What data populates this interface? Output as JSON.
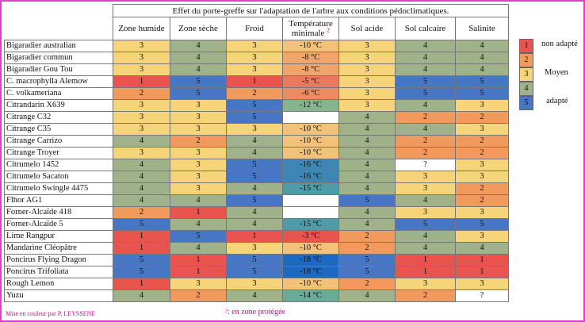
{
  "title": "Effet du porte-greffe sur l'adaptation de l'arbre aux conditions pédoclimatiques.",
  "columns": [
    "Zone humide",
    "Zone sèche",
    "Froid",
    "Température minimale",
    "Sol acide",
    "Sol calcaire",
    "Salinite"
  ],
  "temp_superscript": "2",
  "rows": [
    {
      "name": "Bigaradier australian",
      "values": [
        "3",
        "4",
        "3",
        "-10 °C",
        "3",
        "4",
        "4"
      ]
    },
    {
      "name": "Bigaradier commun",
      "values": [
        "3",
        "4",
        "3",
        "-8 °C",
        "3",
        "4",
        "4"
      ]
    },
    {
      "name": "Bigaradier Gou Tou",
      "values": [
        "3",
        "4",
        "3",
        "-8 °C",
        "3",
        "4",
        "4"
      ]
    },
    {
      "name": "C. macrophylla Alemow",
      "values": [
        "1",
        "5",
        "1",
        "-5 °C",
        "3",
        "5",
        "5"
      ]
    },
    {
      "name": "C. volkameriana",
      "values": [
        "2",
        "5",
        "2",
        "-6 °C",
        "3",
        "5",
        "5"
      ]
    },
    {
      "name": "Citrandarin X639",
      "values": [
        "3",
        "3",
        "5",
        "-12 °C",
        "3",
        "4",
        "3"
      ]
    },
    {
      "name": "Citrange C32",
      "values": [
        "3",
        "3",
        "5",
        "",
        "4",
        "2",
        "2"
      ]
    },
    {
      "name": "Citrange C35",
      "values": [
        "3",
        "3",
        "3",
        "-10 °C",
        "4",
        "4",
        "3"
      ]
    },
    {
      "name": "Citrange Carrizo",
      "values": [
        "4",
        "2",
        "4",
        "-10 °C",
        "4",
        "2",
        "2"
      ]
    },
    {
      "name": "Citrange Troyer",
      "values": [
        "3",
        "3",
        "4",
        "-10 °C",
        "4",
        "2",
        "2"
      ]
    },
    {
      "name": "Citrumelo 1452",
      "values": [
        "4",
        "3",
        "5",
        "-16 °C",
        "4",
        "?",
        "3"
      ]
    },
    {
      "name": "Citrumelo Sacaton",
      "values": [
        "4",
        "3",
        "5",
        "-16 °C",
        "4",
        "3",
        "3"
      ]
    },
    {
      "name": "Citrumelo Swingle 4475",
      "values": [
        "4",
        "3",
        "4",
        "-15 °C",
        "4",
        "3",
        "2"
      ]
    },
    {
      "name": "Flhor AG1",
      "values": [
        "4",
        "4",
        "5",
        "",
        "5",
        "4",
        "2"
      ]
    },
    {
      "name": "Forner-Alcaïde 418",
      "values": [
        "2",
        "1",
        "4",
        "",
        "4",
        "3",
        "3"
      ]
    },
    {
      "name": "Forner-Alcaïde 5",
      "values": [
        "5",
        "4",
        "4",
        "-15 °C",
        "4",
        "5",
        "5"
      ]
    },
    {
      "name": "Lime Rangpur",
      "values": [
        "1",
        "5",
        "1",
        "-3 °C",
        "2",
        "4",
        "3"
      ]
    },
    {
      "name": "Mandarine Cléopâtre",
      "values": [
        "1",
        "4",
        "3",
        "-10 °C",
        "2",
        "4",
        "4"
      ]
    },
    {
      "name": "Poncirus Flying Dragon",
      "values": [
        "5",
        "1",
        "5",
        "-18 °C",
        "5",
        "1",
        "1"
      ]
    },
    {
      "name": "Poncirus Trifoliata",
      "values": [
        "5",
        "1",
        "5",
        "-18 °C",
        "5",
        "1",
        "1"
      ]
    },
    {
      "name": "Rough Lemon",
      "values": [
        "1",
        "3",
        "3",
        "-10 °C",
        "2",
        "3",
        "3"
      ]
    },
    {
      "name": "Yuzu",
      "values": [
        "4",
        "2",
        "4",
        "-14 °C",
        "4",
        "2",
        "?"
      ]
    }
  ],
  "legend": [
    {
      "value": "1",
      "label": "non adapté",
      "color": "#e9544e"
    },
    {
      "value": "2",
      "label": "",
      "color": "#f2995e"
    },
    {
      "value": "3",
      "label": "Moyen",
      "color": "#f6d57a"
    },
    {
      "value": "4",
      "label": "",
      "color": "#9fb28a"
    },
    {
      "value": "5",
      "label": "adapté",
      "color": "#4777c4"
    }
  ],
  "credit": "Mise en couleur par P. LEYSSENE",
  "footnote": "²: en zone protégée"
}
